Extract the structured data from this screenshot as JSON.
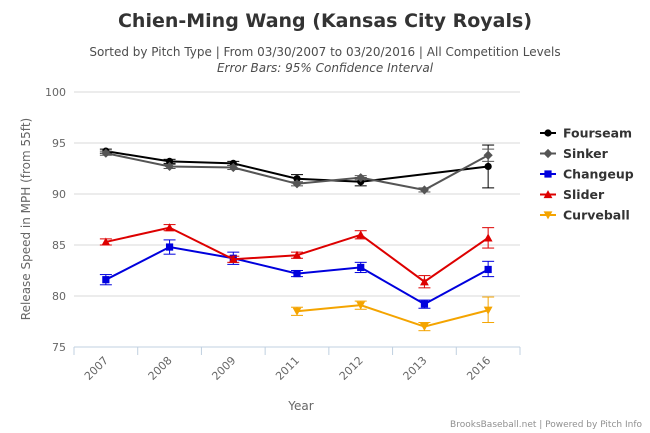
{
  "chart_data": {
    "type": "line",
    "title": "Chien-Ming Wang (Kansas City Royals)",
    "subtitle": "Sorted by Pitch Type | From 03/30/2007 to 03/20/2016 | All Competition Levels",
    "subtitle2": "Error Bars: 95% Confidence Interval",
    "xlabel": "Year",
    "ylabel": "Release Speed in MPH (from 55ft)",
    "categories": [
      "2007",
      "2008",
      "2009",
      "2011",
      "2012",
      "2013",
      "2016"
    ],
    "ylim": [
      75,
      100
    ],
    "yticks": [
      75,
      80,
      85,
      90,
      95,
      100
    ],
    "legend_position": "right",
    "credits": "BrooksBaseball.net | Powered by Pitch Info",
    "series": [
      {
        "name": "Fourseam",
        "color": "#000000",
        "marker": "circle",
        "values": [
          94.2,
          93.2,
          93.0,
          91.5,
          91.2,
          null,
          92.7
        ],
        "error_low": [
          94.0,
          93.0,
          92.8,
          91.1,
          90.8,
          null,
          90.6
        ],
        "error_high": [
          94.4,
          93.4,
          93.2,
          91.9,
          91.6,
          null,
          94.8
        ]
      },
      {
        "name": "Sinker",
        "color": "#555555",
        "marker": "diamond",
        "values": [
          94.0,
          92.7,
          92.6,
          91.0,
          91.6,
          90.4,
          93.8
        ],
        "error_low": [
          93.8,
          92.5,
          92.4,
          90.8,
          91.4,
          90.2,
          93.2
        ],
        "error_high": [
          94.2,
          92.9,
          92.8,
          91.2,
          91.8,
          90.6,
          94.4
        ]
      },
      {
        "name": "Changeup",
        "color": "#0000dd",
        "marker": "square",
        "values": [
          81.6,
          84.8,
          83.7,
          82.2,
          82.8,
          79.2,
          82.6
        ],
        "error_low": [
          81.1,
          84.1,
          83.1,
          81.9,
          82.3,
          78.8,
          81.9
        ],
        "error_high": [
          82.1,
          85.5,
          84.3,
          82.5,
          83.3,
          79.6,
          83.4
        ]
      },
      {
        "name": "Slider",
        "color": "#dd0000",
        "marker": "triangle",
        "values": [
          85.3,
          86.7,
          83.6,
          84.0,
          86.0,
          81.4,
          85.7
        ],
        "error_low": [
          85.0,
          86.4,
          83.3,
          83.7,
          85.6,
          80.8,
          84.7
        ],
        "error_high": [
          85.6,
          87.0,
          83.9,
          84.3,
          86.4,
          82.0,
          86.7
        ]
      },
      {
        "name": "Curveball",
        "color": "#f4a400",
        "marker": "triangle-down",
        "values": [
          null,
          null,
          null,
          78.5,
          79.1,
          77.0,
          78.6
        ],
        "error_low": [
          null,
          null,
          null,
          78.1,
          78.7,
          76.6,
          77.4
        ],
        "error_high": [
          null,
          null,
          null,
          78.9,
          79.5,
          77.4,
          79.9
        ]
      }
    ]
  }
}
